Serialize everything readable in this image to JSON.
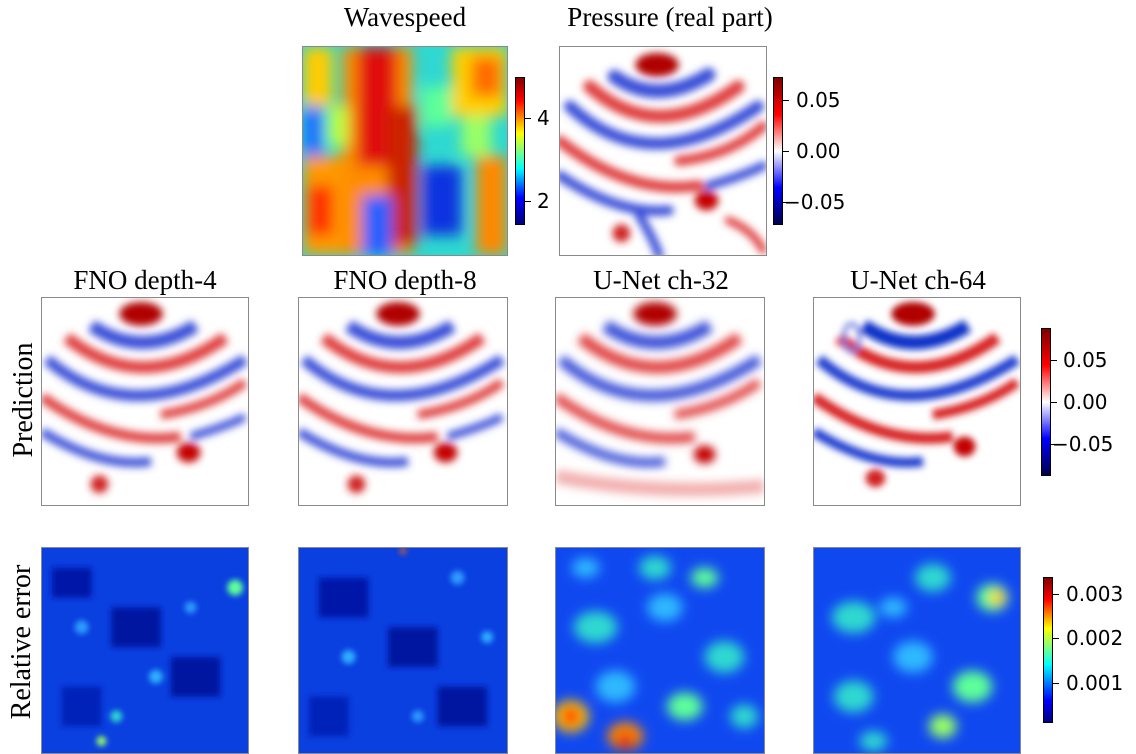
{
  "top": {
    "wavespeed_title": "Wavespeed",
    "pressure_title": "Pressure (real part)",
    "wavespeed_cbar_ticks": [
      "4",
      "2"
    ],
    "pressure_cbar_ticks": [
      "0.05",
      "0.00",
      "−0.05"
    ]
  },
  "columns": [
    "FNO depth-4",
    "FNO depth-8",
    "U-Net ch-32",
    "U-Net ch-64"
  ],
  "rows": {
    "prediction_label": "Prediction",
    "error_label": "Relative error"
  },
  "prediction_cbar_ticks": [
    "0.05",
    "0.00",
    "−0.05"
  ],
  "error_cbar_ticks": [
    "0.003",
    "0.002",
    "0.001"
  ],
  "colors": {
    "jet": [
      "#00007f",
      "#0000ff",
      "#00ffff",
      "#7fff7f",
      "#ffff00",
      "#ff0000",
      "#7f0000"
    ],
    "seismic": [
      "#00004c",
      "#0000ff",
      "#ffffff",
      "#ff0000",
      "#7f0000"
    ],
    "wave_red": "#e03030",
    "wave_blue": "#3a4fd8"
  },
  "icons": {
    "colorbar": "colorbar-icon",
    "heatmap": "heatmap-icon"
  }
}
